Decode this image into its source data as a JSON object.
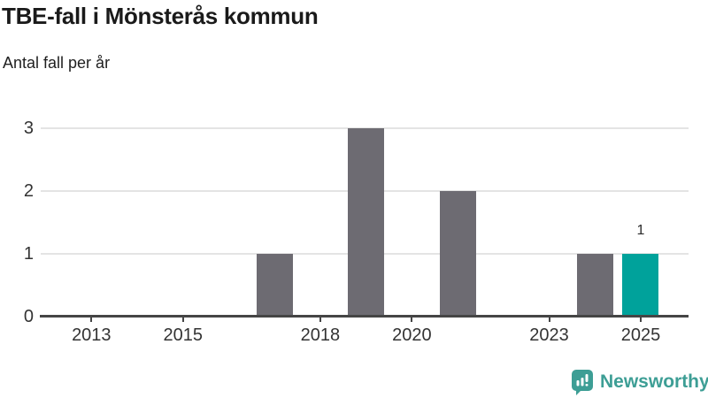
{
  "header": {
    "title": "TBE-fall i Mönsterås kommun",
    "subtitle": "Antal fall per år"
  },
  "chart_data": {
    "type": "bar",
    "title": "TBE-fall i Mönsterås kommun",
    "ylabel": "Antal fall per år",
    "categories": [
      2012,
      2013,
      2014,
      2015,
      2016,
      2017,
      2018,
      2019,
      2020,
      2021,
      2022,
      2023,
      2024,
      2025
    ],
    "values": [
      0,
      0,
      0,
      0,
      0,
      1,
      0,
      3,
      0,
      2,
      0,
      0,
      1,
      1
    ],
    "ylim": [
      0,
      3
    ],
    "yticks": [
      0,
      1,
      2,
      3
    ],
    "xtick_labels": [
      "2013",
      "2015",
      "2018",
      "2020",
      "2023",
      "2025"
    ],
    "grid": "horizontal",
    "legend": "none",
    "bar_color": "#6d6b72",
    "grid_color": "#e4e4e4",
    "axis_color": "#454545",
    "highlight": {
      "category": 2025,
      "color": "#00a29b",
      "data_label": "1"
    }
  },
  "footer": {
    "brand": "Newsworthy",
    "brand_color": "#3d9e95",
    "logo_icon": "newsworthy-speech-bubble-bar-chart-icon"
  }
}
